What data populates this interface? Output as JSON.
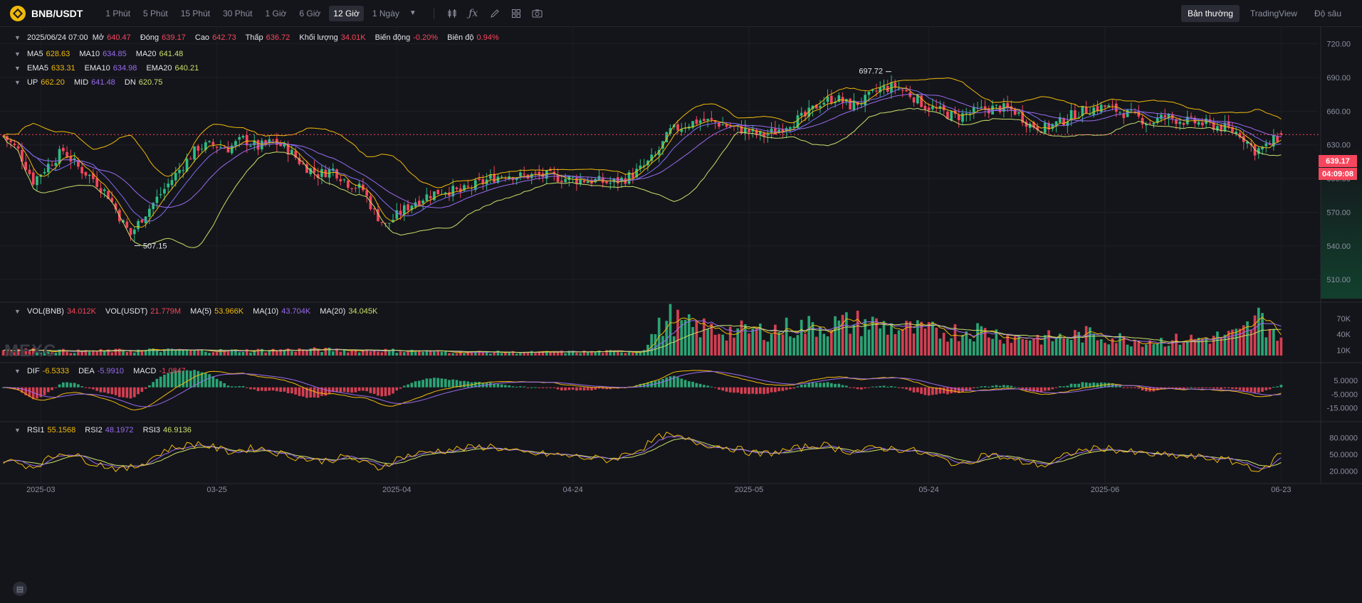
{
  "toolbar": {
    "symbol": "BNB/USDT",
    "timeframes": [
      "1 Phút",
      "5 Phút",
      "15 Phút",
      "30 Phút",
      "1 Giờ",
      "6 Giờ",
      "12 Giờ",
      "1 Ngày"
    ],
    "active_timeframe": "12 Giờ",
    "icons": [
      "candle-type-icon",
      "indicator-icon",
      "draw-icon",
      "layout-icon",
      "screenshot-icon"
    ],
    "views": [
      "Bản thường",
      "TradingView",
      "Độ sâu"
    ],
    "active_view": "Bản thường"
  },
  "ohlc": {
    "date": "2025/06/24 07:00",
    "open_label": "Mở",
    "open": "640.47",
    "close_label": "Đóng",
    "close": "639.17",
    "high_label": "Cao",
    "high": "642.73",
    "low_label": "Thấp",
    "low": "636.72",
    "volume_label": "Khối lượng",
    "volume": "34.01K",
    "change_label": "Biến động",
    "change": "-0.20%",
    "amplitude_label": "Biên độ",
    "amplitude": "0.94%"
  },
  "ma": {
    "ma5_label": "MA5",
    "ma5": "628.63",
    "ma10_label": "MA10",
    "ma10": "634.85",
    "ma20_label": "MA20",
    "ma20": "641.48"
  },
  "ema": {
    "ema5_label": "EMA5",
    "ema5": "633.31",
    "ema10_label": "EMA10",
    "ema10": "634.98",
    "ema20_label": "EMA20",
    "ema20": "640.21"
  },
  "boll": {
    "up_label": "UP",
    "up": "662.20",
    "mid_label": "MID",
    "mid": "641.48",
    "dn_label": "DN",
    "dn": "620.75"
  },
  "vol_legend": {
    "vol_bnb_label": "VOL(BNB)",
    "vol_bnb": "34.012K",
    "vol_usdt_label": "VOL(USDT)",
    "vol_usdt": "21.779M",
    "ma5_label": "MA(5)",
    "ma5": "53.966K",
    "ma10_label": "MA(10)",
    "ma10": "43.704K",
    "ma20_label": "MA(20)",
    "ma20": "34.045K"
  },
  "macd_legend": {
    "dif_label": "DIF",
    "dif": "-6.5333",
    "dea_label": "DEA",
    "dea": "-5.9910",
    "macd_label": "MACD",
    "macd": "-1.0847"
  },
  "rsi_legend": {
    "rsi1_label": "RSI1",
    "rsi1": "55.1568",
    "rsi2_label": "RSI2",
    "rsi2": "48.1972",
    "rsi3_label": "RSI3",
    "rsi3": "46.9136"
  },
  "price_tag": {
    "price": "639.17",
    "countdown": "04:09:08"
  },
  "watermark": "MEXC",
  "colors": {
    "up": "#2ebd85",
    "down": "#f6465d",
    "ma5": "#f0b90b",
    "ma10": "#9a6bf0",
    "ma20": "#c8e06a",
    "boll_mid": "#c8e06a",
    "bg": "#14151a"
  },
  "chart_data": {
    "type": "candlestick",
    "price_axis": {
      "ticks": [
        "720.00",
        "690.00",
        "660.00",
        "630.00",
        "600.00",
        "570.00",
        "540.00",
        "510.00"
      ],
      "range": [
        493,
        735
      ]
    },
    "time_axis": {
      "ticks": [
        "2025-03",
        "03-25",
        "2025-04",
        "04-24",
        "2025-05",
        "05-24",
        "2025-06",
        "06-23"
      ]
    },
    "annotations": {
      "high": "697.72",
      "low": "507.15"
    },
    "volume_axis": {
      "ticks": [
        "70K",
        "40K",
        "10K"
      ]
    },
    "macd_axis": {
      "ticks": [
        "5.0000",
        "-5.0000",
        "-15.0000"
      ]
    },
    "rsi_axis": {
      "ticks": [
        "80.0000",
        "50.0000",
        "20.0000"
      ]
    },
    "close_anchors": [
      [
        0,
        638
      ],
      [
        4,
        625
      ],
      [
        8,
        598
      ],
      [
        12,
        612
      ],
      [
        16,
        625
      ],
      [
        20,
        610
      ],
      [
        24,
        600
      ],
      [
        28,
        585
      ],
      [
        32,
        560
      ],
      [
        34,
        550
      ],
      [
        37,
        565
      ],
      [
        40,
        578
      ],
      [
        44,
        595
      ],
      [
        48,
        612
      ],
      [
        52,
        628
      ],
      [
        56,
        630
      ],
      [
        60,
        627
      ],
      [
        64,
        635
      ],
      [
        68,
        628
      ],
      [
        72,
        633
      ],
      [
        76,
        626
      ],
      [
        80,
        612
      ],
      [
        84,
        604
      ],
      [
        88,
        608
      ],
      [
        92,
        596
      ],
      [
        96,
        590
      ],
      [
        99,
        570
      ],
      [
        102,
        558
      ],
      [
        106,
        570
      ],
      [
        110,
        580
      ],
      [
        114,
        586
      ],
      [
        118,
        590
      ],
      [
        122,
        588
      ],
      [
        126,
        594
      ],
      [
        130,
        600
      ],
      [
        134,
        604
      ],
      [
        138,
        602
      ],
      [
        142,
        603
      ],
      [
        146,
        602
      ],
      [
        150,
        600
      ],
      [
        154,
        599
      ],
      [
        158,
        598
      ],
      [
        162,
        596
      ],
      [
        166,
        600
      ],
      [
        170,
        608
      ],
      [
        174,
        620
      ],
      [
        178,
        642
      ],
      [
        182,
        648
      ],
      [
        186,
        652
      ],
      [
        190,
        650
      ],
      [
        194,
        646
      ],
      [
        198,
        643
      ],
      [
        202,
        638
      ],
      [
        206,
        642
      ],
      [
        210,
        650
      ],
      [
        214,
        655
      ],
      [
        218,
        668
      ],
      [
        222,
        672
      ],
      [
        226,
        665
      ],
      [
        230,
        670
      ],
      [
        234,
        680
      ],
      [
        238,
        682
      ],
      [
        242,
        675
      ],
      [
        246,
        665
      ],
      [
        250,
        660
      ],
      [
        254,
        655
      ],
      [
        258,
        658
      ],
      [
        262,
        662
      ],
      [
        266,
        663
      ],
      [
        270,
        660
      ],
      [
        274,
        648
      ],
      [
        278,
        645
      ],
      [
        282,
        650
      ],
      [
        286,
        658
      ],
      [
        290,
        662
      ],
      [
        294,
        664
      ],
      [
        298,
        660
      ],
      [
        302,
        655
      ],
      [
        306,
        650
      ],
      [
        310,
        655
      ],
      [
        314,
        652
      ],
      [
        318,
        650
      ],
      [
        322,
        648
      ],
      [
        326,
        645
      ],
      [
        330,
        640
      ],
      [
        334,
        625
      ],
      [
        337,
        628
      ],
      [
        341,
        639
      ]
    ],
    "volume_anchors": [
      [
        0,
        12
      ],
      [
        20,
        8
      ],
      [
        40,
        10
      ],
      [
        60,
        9
      ],
      [
        80,
        11
      ],
      [
        100,
        10
      ],
      [
        120,
        7
      ],
      [
        140,
        6
      ],
      [
        170,
        8
      ],
      [
        174,
        45
      ],
      [
        178,
        70
      ],
      [
        182,
        55
      ],
      [
        186,
        52
      ],
      [
        190,
        48
      ],
      [
        200,
        45
      ],
      [
        210,
        52
      ],
      [
        220,
        58
      ],
      [
        230,
        62
      ],
      [
        240,
        50
      ],
      [
        250,
        44
      ],
      [
        260,
        48
      ],
      [
        270,
        35
      ],
      [
        280,
        33
      ],
      [
        290,
        40
      ],
      [
        300,
        30
      ],
      [
        310,
        28
      ],
      [
        320,
        32
      ],
      [
        330,
        40
      ],
      [
        335,
        70
      ],
      [
        338,
        55
      ],
      [
        341,
        34
      ]
    ],
    "rsi_anchors": [
      [
        0,
        40
      ],
      [
        8,
        28
      ],
      [
        16,
        55
      ],
      [
        24,
        35
      ],
      [
        32,
        22
      ],
      [
        36,
        30
      ],
      [
        44,
        60
      ],
      [
        52,
        70
      ],
      [
        60,
        55
      ],
      [
        68,
        62
      ],
      [
        76,
        48
      ],
      [
        84,
        38
      ],
      [
        92,
        45
      ],
      [
        100,
        25
      ],
      [
        106,
        45
      ],
      [
        114,
        55
      ],
      [
        122,
        60
      ],
      [
        130,
        65
      ],
      [
        138,
        52
      ],
      [
        146,
        50
      ],
      [
        154,
        45
      ],
      [
        162,
        40
      ],
      [
        170,
        60
      ],
      [
        176,
        85
      ],
      [
        180,
        80
      ],
      [
        186,
        70
      ],
      [
        194,
        62
      ],
      [
        202,
        50
      ],
      [
        210,
        58
      ],
      [
        218,
        68
      ],
      [
        226,
        55
      ],
      [
        234,
        62
      ],
      [
        242,
        58
      ],
      [
        250,
        42
      ],
      [
        256,
        30
      ],
      [
        262,
        52
      ],
      [
        270,
        38
      ],
      [
        278,
        30
      ],
      [
        286,
        55
      ],
      [
        294,
        62
      ],
      [
        302,
        52
      ],
      [
        310,
        48
      ],
      [
        318,
        45
      ],
      [
        326,
        40
      ],
      [
        332,
        30
      ],
      [
        336,
        18
      ],
      [
        341,
        55
      ]
    ],
    "candle_count": 342
  }
}
